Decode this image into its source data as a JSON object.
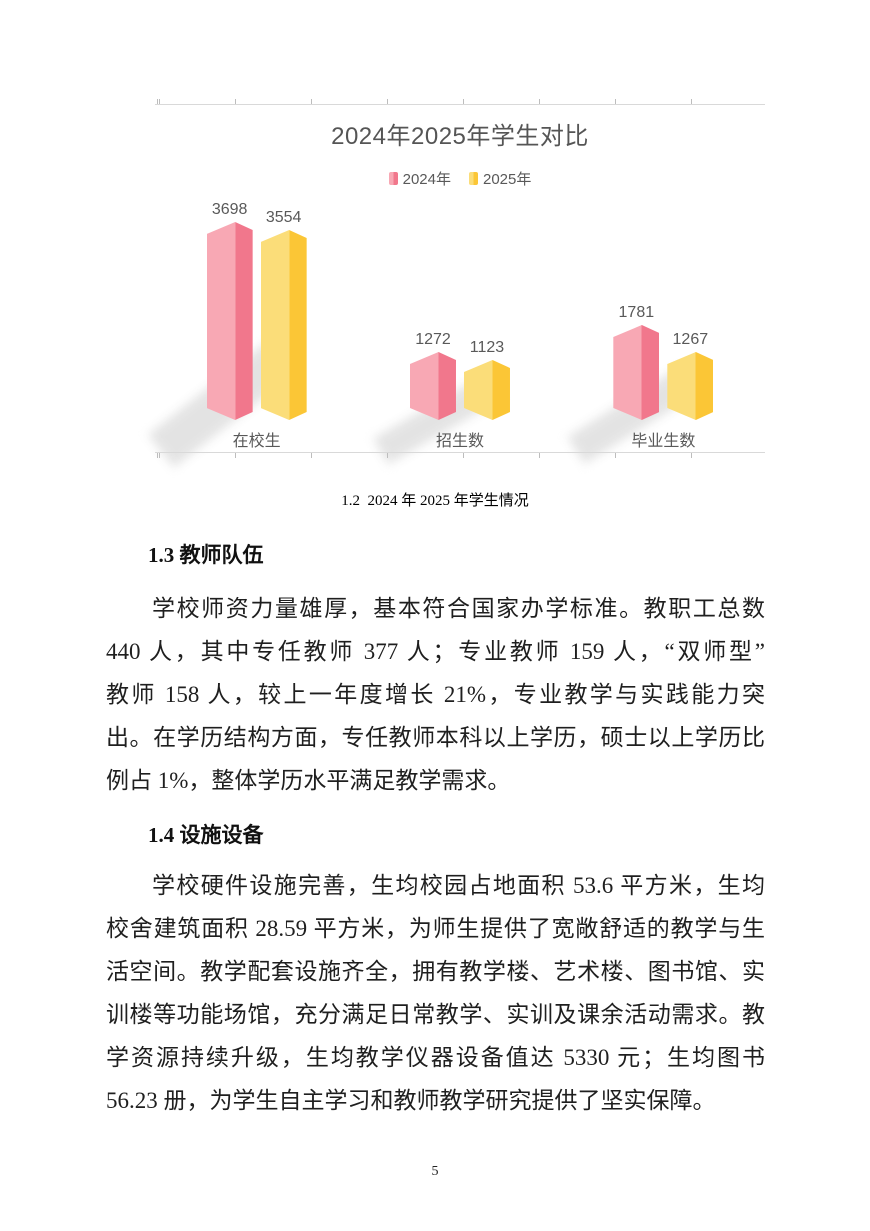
{
  "page": {
    "number": "5"
  },
  "figure_caption": "1.2  2024 年 2025 年学生情况",
  "chart_data": {
    "type": "bar",
    "title": "2024年2025年学生对比",
    "categories": [
      "在校生",
      "招生数",
      "毕业生数"
    ],
    "series": [
      {
        "name": "2024年",
        "values": [
          3698,
          1272,
          1781
        ],
        "color_light": "#F8A8B4",
        "color_dark": "#F1778C"
      },
      {
        "name": "2025年",
        "values": [
          3554,
          1123,
          1267
        ],
        "color_light": "#FBDD79",
        "color_dark": "#FBC636"
      }
    ],
    "ylim": [
      0,
      3900
    ],
    "legend_position": "top",
    "grid": false,
    "data_labels": true,
    "text_color": "#595959",
    "axis_line_color": "#d9d9d9"
  },
  "sections": [
    {
      "heading": "1.3 教师队伍",
      "lines": [
        "学校师资力量雄厚，基本符合国家办学标准。教职工总数",
        "440 人，其中专任教师 377 人；专业教师 159 人，“双师型”",
        "教师 158 人，较上一年度增长 21%，专业教学与实践能力突",
        "出。在学历结构方面，专任教师本科以上学历，硕士以上学历比",
        "例占 1%，整体学历水平满足教学需求。"
      ]
    },
    {
      "heading": "1.4 设施设备",
      "lines": [
        "学校硬件设施完善，生均校园占地面积 53.6 平方米，生均",
        "校舍建筑面积 28.59 平方米，为师生提供了宽敞舒适的教学与生",
        "活空间。教学配套设施齐全，拥有教学楼、艺术楼、图书馆、实",
        "训楼等功能场馆，充分满足日常教学、实训及课余活动需求。教",
        "学资源持续升级，生均教学仪器设备值达 5330 元；生均图书",
        "56.23 册，为学生自主学习和教师教学研究提供了坚实保障。"
      ]
    }
  ]
}
